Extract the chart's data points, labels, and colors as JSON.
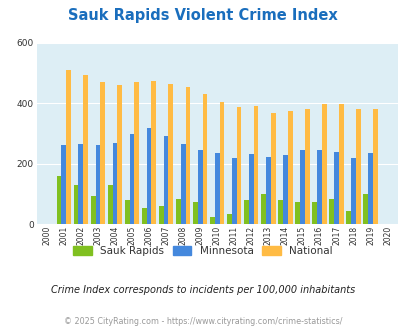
{
  "title": "Sauk Rapids Violent Crime Index",
  "title_color": "#1a6ebd",
  "subtitle": "Crime Index corresponds to incidents per 100,000 inhabitants",
  "subtitle_color": "#222222",
  "copyright": "© 2025 CityRating.com - https://www.cityrating.com/crime-statistics/",
  "copyright_color": "#999999",
  "years": [
    2000,
    2001,
    2002,
    2003,
    2004,
    2005,
    2006,
    2007,
    2008,
    2009,
    2010,
    2011,
    2012,
    2013,
    2014,
    2015,
    2016,
    2017,
    2018,
    2019,
    2020
  ],
  "sauk_rapids": [
    0,
    160,
    130,
    95,
    130,
    80,
    55,
    60,
    85,
    75,
    25,
    35,
    80,
    100,
    82,
    75,
    75,
    85,
    45,
    100,
    0
  ],
  "minnesota": [
    0,
    263,
    267,
    263,
    270,
    300,
    320,
    293,
    265,
    245,
    235,
    218,
    232,
    222,
    230,
    245,
    247,
    240,
    220,
    237,
    0
  ],
  "national": [
    0,
    510,
    495,
    472,
    462,
    470,
    473,
    465,
    455,
    430,
    404,
    389,
    390,
    368,
    375,
    383,
    399,
    399,
    383,
    380,
    0
  ],
  "sauk_color": "#80c020",
  "minnesota_color": "#4488dd",
  "national_color": "#ffbb44",
  "bg_color": "#ddeef5",
  "ylim": [
    0,
    600
  ],
  "yticks": [
    0,
    200,
    400,
    600
  ],
  "bar_width": 0.28,
  "legend_labels": [
    "Sauk Rapids",
    "Minnesota",
    "National"
  ]
}
